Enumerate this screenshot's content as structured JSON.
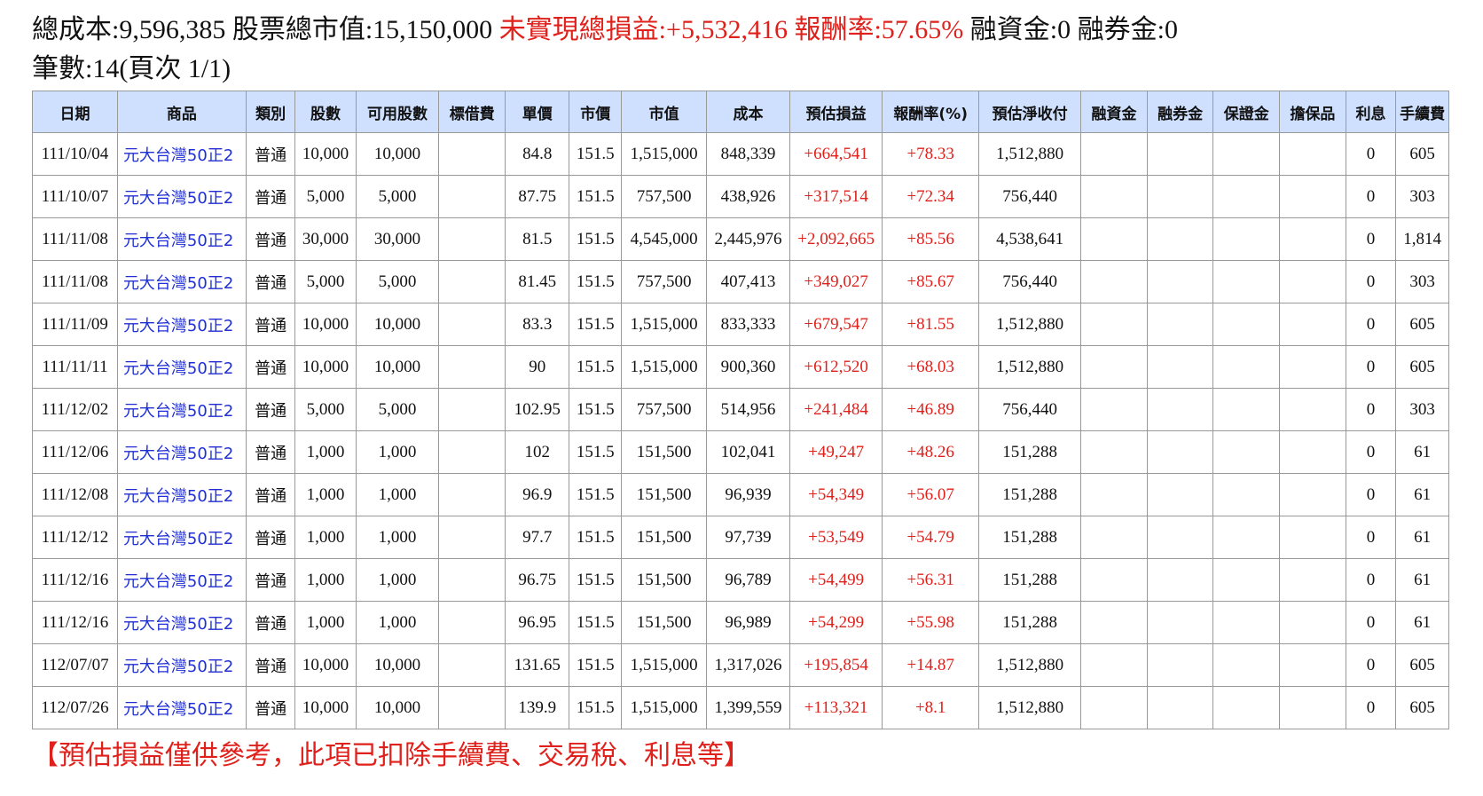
{
  "summary": {
    "line1": [
      {
        "text": "總成本:9,596,385",
        "red": false
      },
      {
        "text": "股票總市值:15,150,000",
        "red": false
      },
      {
        "text": "未實現總損益:+5,532,416",
        "red": true
      },
      {
        "text": "報酬率:57.65%",
        "red": true
      },
      {
        "text": "融資金:0",
        "red": false
      },
      {
        "text": "融券金:0",
        "red": false
      }
    ],
    "line2": "筆數:14(頁次 1/1)"
  },
  "table": {
    "headers": [
      "日期",
      "商品",
      "類別",
      "股數",
      "可用股數",
      "標借費",
      "單價",
      "市價",
      "市值",
      "成本",
      "預估損益",
      "報酬率(%)",
      "預估淨收付",
      "融資金",
      "融券金",
      "保證金",
      "擔保品",
      "利息",
      "手續費"
    ],
    "rows": [
      [
        "111/10/04",
        "元大台灣50正2",
        "普通",
        "10,000",
        "10,000",
        "",
        "84.8",
        "151.5",
        "1,515,000",
        "848,339",
        "+664,541",
        "+78.33",
        "1,512,880",
        "",
        "",
        "",
        "",
        "0",
        "605"
      ],
      [
        "111/10/07",
        "元大台灣50正2",
        "普通",
        "5,000",
        "5,000",
        "",
        "87.75",
        "151.5",
        "757,500",
        "438,926",
        "+317,514",
        "+72.34",
        "756,440",
        "",
        "",
        "",
        "",
        "0",
        "303"
      ],
      [
        "111/11/08",
        "元大台灣50正2",
        "普通",
        "30,000",
        "30,000",
        "",
        "81.5",
        "151.5",
        "4,545,000",
        "2,445,976",
        "+2,092,665",
        "+85.56",
        "4,538,641",
        "",
        "",
        "",
        "",
        "0",
        "1,814"
      ],
      [
        "111/11/08",
        "元大台灣50正2",
        "普通",
        "5,000",
        "5,000",
        "",
        "81.45",
        "151.5",
        "757,500",
        "407,413",
        "+349,027",
        "+85.67",
        "756,440",
        "",
        "",
        "",
        "",
        "0",
        "303"
      ],
      [
        "111/11/09",
        "元大台灣50正2",
        "普通",
        "10,000",
        "10,000",
        "",
        "83.3",
        "151.5",
        "1,515,000",
        "833,333",
        "+679,547",
        "+81.55",
        "1,512,880",
        "",
        "",
        "",
        "",
        "0",
        "605"
      ],
      [
        "111/11/11",
        "元大台灣50正2",
        "普通",
        "10,000",
        "10,000",
        "",
        "90",
        "151.5",
        "1,515,000",
        "900,360",
        "+612,520",
        "+68.03",
        "1,512,880",
        "",
        "",
        "",
        "",
        "0",
        "605"
      ],
      [
        "111/12/02",
        "元大台灣50正2",
        "普通",
        "5,000",
        "5,000",
        "",
        "102.95",
        "151.5",
        "757,500",
        "514,956",
        "+241,484",
        "+46.89",
        "756,440",
        "",
        "",
        "",
        "",
        "0",
        "303"
      ],
      [
        "111/12/06",
        "元大台灣50正2",
        "普通",
        "1,000",
        "1,000",
        "",
        "102",
        "151.5",
        "151,500",
        "102,041",
        "+49,247",
        "+48.26",
        "151,288",
        "",
        "",
        "",
        "",
        "0",
        "61"
      ],
      [
        "111/12/08",
        "元大台灣50正2",
        "普通",
        "1,000",
        "1,000",
        "",
        "96.9",
        "151.5",
        "151,500",
        "96,939",
        "+54,349",
        "+56.07",
        "151,288",
        "",
        "",
        "",
        "",
        "0",
        "61"
      ],
      [
        "111/12/12",
        "元大台灣50正2",
        "普通",
        "1,000",
        "1,000",
        "",
        "97.7",
        "151.5",
        "151,500",
        "97,739",
        "+53,549",
        "+54.79",
        "151,288",
        "",
        "",
        "",
        "",
        "0",
        "61"
      ],
      [
        "111/12/16",
        "元大台灣50正2",
        "普通",
        "1,000",
        "1,000",
        "",
        "96.75",
        "151.5",
        "151,500",
        "96,789",
        "+54,499",
        "+56.31",
        "151,288",
        "",
        "",
        "",
        "",
        "0",
        "61"
      ],
      [
        "111/12/16",
        "元大台灣50正2",
        "普通",
        "1,000",
        "1,000",
        "",
        "96.95",
        "151.5",
        "151,500",
        "96,989",
        "+54,299",
        "+55.98",
        "151,288",
        "",
        "",
        "",
        "",
        "0",
        "61"
      ],
      [
        "112/07/07",
        "元大台灣50正2",
        "普通",
        "10,000",
        "10,000",
        "",
        "131.65",
        "151.5",
        "1,515,000",
        "1,317,026",
        "+195,854",
        "+14.87",
        "1,512,880",
        "",
        "",
        "",
        "",
        "0",
        "605"
      ],
      [
        "112/07/26",
        "元大台灣50正2",
        "普通",
        "10,000",
        "10,000",
        "",
        "139.9",
        "151.5",
        "1,515,000",
        "1,399,559",
        "+113,321",
        "+8.1",
        "1,512,880",
        "",
        "",
        "",
        "",
        "0",
        "605"
      ]
    ]
  },
  "footer_note": "【預估損益僅供參考，此項已扣除手續費、交易稅、利息等】",
  "colors": {
    "red": "#e0201b",
    "link": "#1f2fd6",
    "header_bg": "#cfe0ff"
  }
}
